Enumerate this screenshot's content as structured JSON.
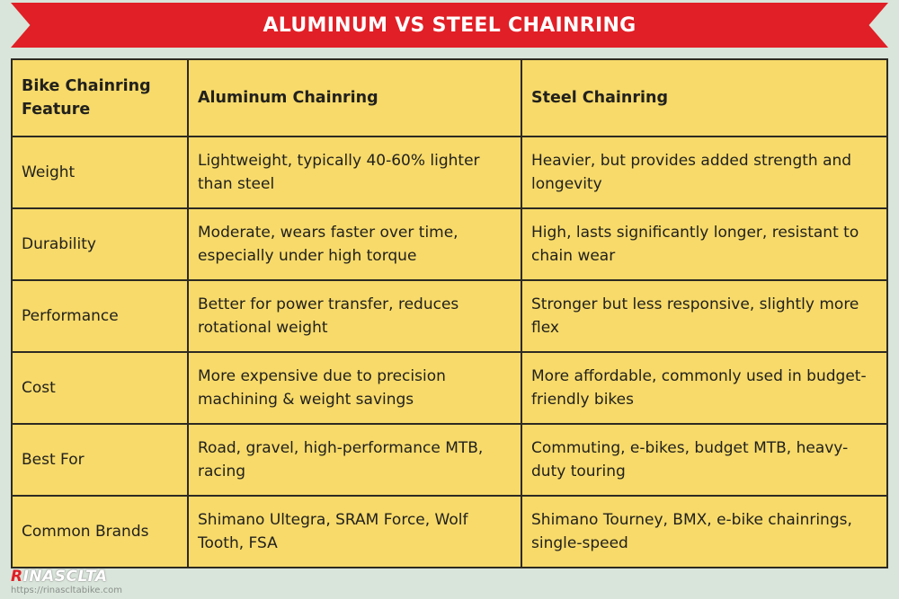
{
  "banner": {
    "title": "ALUMINUM VS STEEL CHAINRING"
  },
  "table": {
    "headers": [
      "Bike Chainring Feature",
      "Aluminum Chainring",
      "Steel Chainring"
    ],
    "rows": [
      [
        "Weight",
        "Lightweight, typically 40-60% lighter than steel",
        "Heavier, but provides added strength and longevity"
      ],
      [
        "Durability",
        "Moderate, wears faster over time, especially under high torque",
        "High, lasts significantly longer, resistant to chain wear"
      ],
      [
        "Performance",
        "Better for power transfer, reduces rotational weight",
        "Stronger but less responsive, slightly more flex"
      ],
      [
        "Cost",
        "More expensive due to precision machining & weight savings",
        "More affordable, commonly used in budget-friendly bikes"
      ],
      [
        "Best For",
        "Road, gravel, high-performance MTB, racing",
        "Commuting, e-bikes, budget MTB, heavy-duty touring"
      ],
      [
        "Common Brands",
        "Shimano Ultegra, SRAM Force, Wolf Tooth, FSA",
        "Shimano Tourney, BMX, e-bike chainrings, single-speed"
      ]
    ]
  },
  "brand": {
    "logo_first": "R",
    "logo_rest": "INASCLTA",
    "url": "https://rinascltabike.com"
  },
  "colors": {
    "banner": "#e11f26",
    "table_background": "#f7da6a",
    "page_background": "#d9e5da",
    "border": "#2d2a22"
  }
}
